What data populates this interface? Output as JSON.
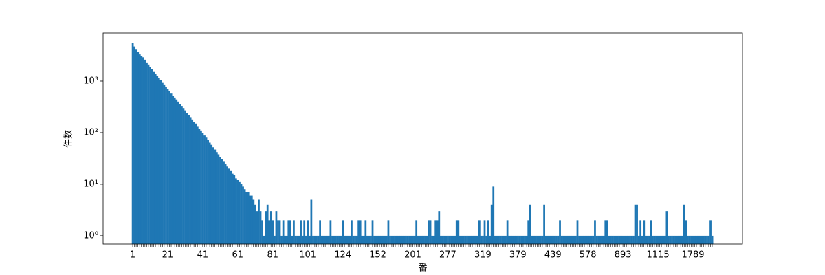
{
  "chart_data": {
    "type": "bar",
    "log_y": true,
    "grid": false,
    "color": "#1f77b4",
    "x_label": "番",
    "y_label": "件数",
    "ylim": [
      0.69,
      8580
    ],
    "yticks": [
      {
        "value": 1,
        "label": "10⁰"
      },
      {
        "value": 10,
        "label": "10¹"
      },
      {
        "value": 100,
        "label": "10²"
      },
      {
        "value": 1000,
        "label": "10³"
      }
    ],
    "categories": [
      "1",
      null,
      null,
      null,
      null,
      null,
      null,
      null,
      null,
      null,
      null,
      null,
      null,
      null,
      null,
      null,
      null,
      null,
      null,
      null,
      "21",
      null,
      null,
      null,
      null,
      null,
      null,
      null,
      null,
      null,
      null,
      null,
      null,
      null,
      null,
      null,
      null,
      null,
      null,
      null,
      "41",
      null,
      null,
      null,
      null,
      null,
      null,
      null,
      null,
      null,
      null,
      null,
      null,
      null,
      null,
      null,
      null,
      null,
      null,
      null,
      "61",
      null,
      null,
      null,
      null,
      null,
      null,
      null,
      null,
      null,
      null,
      null,
      null,
      null,
      null,
      null,
      null,
      null,
      null,
      null,
      "81",
      null,
      null,
      null,
      null,
      null,
      null,
      null,
      null,
      null,
      null,
      null,
      null,
      null,
      null,
      null,
      null,
      null,
      null,
      null,
      "101",
      null,
      null,
      null,
      null,
      null,
      null,
      null,
      null,
      null,
      null,
      null,
      null,
      null,
      null,
      null,
      null,
      null,
      null,
      null,
      "124",
      null,
      null,
      null,
      null,
      null,
      null,
      null,
      null,
      null,
      null,
      null,
      null,
      null,
      null,
      null,
      null,
      null,
      null,
      null,
      "152",
      null,
      null,
      null,
      null,
      null,
      null,
      null,
      null,
      null,
      null,
      null,
      null,
      null,
      null,
      null,
      null,
      null,
      null,
      null,
      "201",
      null,
      null,
      null,
      null,
      null,
      null,
      null,
      null,
      null,
      null,
      null,
      null,
      null,
      null,
      null,
      null,
      null,
      null,
      null,
      "277",
      null,
      null,
      null,
      null,
      null,
      null,
      null,
      null,
      null,
      null,
      null,
      null,
      null,
      null,
      null,
      null,
      null,
      null,
      null,
      "319",
      null,
      null,
      null,
      null,
      null,
      null,
      null,
      null,
      null,
      null,
      null,
      null,
      null,
      null,
      null,
      null,
      null,
      null,
      null,
      "379",
      null,
      null,
      null,
      null,
      null,
      null,
      null,
      null,
      null,
      null,
      null,
      null,
      null,
      null,
      null,
      null,
      null,
      null,
      null,
      "439",
      null,
      null,
      null,
      null,
      null,
      null,
      null,
      null,
      null,
      null,
      null,
      null,
      null,
      null,
      null,
      null,
      null,
      null,
      null,
      "578",
      null,
      null,
      null,
      null,
      null,
      null,
      null,
      null,
      null,
      null,
      null,
      null,
      null,
      null,
      null,
      null,
      null,
      null,
      null,
      "893",
      null,
      null,
      null,
      null,
      null,
      null,
      null,
      null,
      null,
      null,
      null,
      null,
      null,
      null,
      null,
      null,
      null,
      null,
      null,
      "1115",
      null,
      null,
      null,
      null,
      null,
      null,
      null,
      null,
      null,
      null,
      null,
      null,
      null,
      null,
      null,
      null,
      null,
      null,
      null,
      "1789",
      null,
      null,
      null,
      null,
      null,
      null,
      null,
      null,
      null,
      null,
      null
    ],
    "values": [
      5500,
      4700,
      4200,
      3700,
      3300,
      3100,
      2900,
      2600,
      2300,
      2100,
      1900,
      1700,
      1550,
      1400,
      1250,
      1150,
      1050,
      950,
      860,
      780,
      700,
      640,
      590,
      520,
      480,
      440,
      400,
      360,
      330,
      300,
      270,
      240,
      220,
      200,
      180,
      160,
      150,
      130,
      120,
      110,
      98,
      88,
      80,
      72,
      64,
      58,
      52,
      47,
      42,
      38,
      34,
      31,
      28,
      25,
      22,
      20,
      18,
      16,
      15,
      13,
      12,
      11,
      10,
      9,
      8,
      7,
      7,
      6,
      6,
      5,
      4,
      3,
      5,
      3,
      2,
      1,
      3,
      4,
      2,
      3,
      2,
      1,
      3,
      2,
      2,
      1,
      2,
      1,
      1,
      2,
      2,
      1,
      2,
      1,
      1,
      1,
      2,
      1,
      2,
      1,
      2,
      1,
      5,
      1,
      1,
      1,
      1,
      2,
      1,
      1,
      1,
      1,
      1,
      2,
      1,
      1,
      1,
      1,
      1,
      1,
      2,
      1,
      1,
      1,
      1,
      2,
      1,
      1,
      1,
      2,
      2,
      1,
      1,
      2,
      1,
      1,
      1,
      2,
      1,
      1,
      1,
      1,
      1,
      1,
      1,
      1,
      2,
      1,
      1,
      1,
      1,
      1,
      1,
      1,
      1,
      1,
      1,
      1,
      1,
      1,
      1,
      1,
      2,
      1,
      1,
      1,
      1,
      1,
      1,
      2,
      2,
      1,
      1,
      2,
      2,
      3,
      1,
      1,
      1,
      1,
      1,
      1,
      1,
      1,
      1,
      2,
      2,
      1,
      1,
      1,
      1,
      1,
      1,
      1,
      1,
      1,
      1,
      1,
      2,
      1,
      1,
      2,
      1,
      2,
      1,
      4,
      9,
      1,
      1,
      1,
      1,
      1,
      1,
      1,
      2,
      1,
      1,
      1,
      1,
      1,
      1,
      1,
      1,
      1,
      1,
      1,
      2,
      4,
      1,
      1,
      1,
      1,
      1,
      1,
      1,
      4,
      1,
      1,
      1,
      1,
      1,
      1,
      1,
      1,
      2,
      1,
      1,
      1,
      1,
      1,
      1,
      1,
      1,
      1,
      2,
      1,
      1,
      1,
      1,
      1,
      1,
      1,
      1,
      1,
      2,
      1,
      1,
      1,
      1,
      1,
      2,
      2,
      1,
      1,
      1,
      1,
      1,
      1,
      1,
      1,
      1,
      1,
      1,
      1,
      1,
      1,
      1,
      4,
      4,
      1,
      2,
      1,
      2,
      1,
      1,
      1,
      2,
      1,
      1,
      1,
      1,
      1,
      1,
      1,
      1,
      3,
      1,
      1,
      1,
      1,
      1,
      1,
      1,
      1,
      1,
      4,
      2,
      1,
      1,
      1,
      1,
      1,
      1,
      1,
      1,
      1,
      1,
      1,
      1,
      1,
      2,
      1
    ]
  }
}
